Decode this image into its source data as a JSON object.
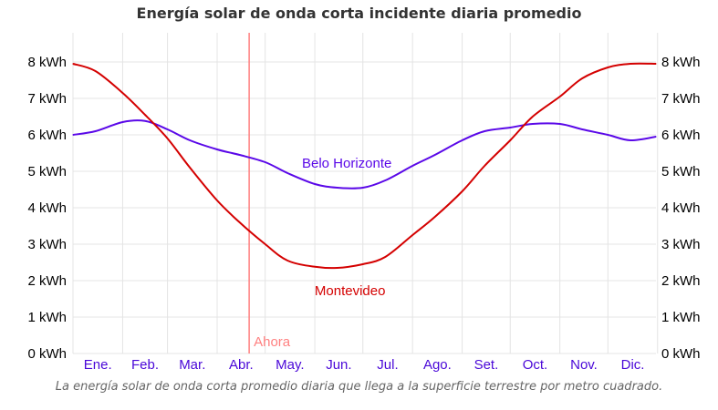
{
  "chart_data": {
    "type": "line",
    "title": "Energía solar de onda corta incidente diaria promedio",
    "caption": "La energía solar de onda corta promedio diaria que llega a la superficie terrestre por metro cuadrado.",
    "y_unit": "kWh",
    "ylim": [
      0,
      8.8
    ],
    "y_ticks": [
      0,
      1,
      2,
      3,
      4,
      5,
      6,
      7,
      8
    ],
    "y_tick_labels": [
      "0 kWh",
      "1 kWh",
      "2 kWh",
      "3 kWh",
      "4 kWh",
      "5 kWh",
      "6 kWh",
      "7 kWh",
      "8 kWh"
    ],
    "y_axis_both_sides": true,
    "x_month_labels": [
      "Ene.",
      "Feb.",
      "Mar.",
      "Abr.",
      "May.",
      "Jun.",
      "Jul.",
      "Ago.",
      "Set.",
      "Oct.",
      "Nov.",
      "Dic."
    ],
    "grid": true,
    "now_marker": {
      "label": "Ahora",
      "day_of_year": 111,
      "color": "#ff8080"
    },
    "colors": {
      "belo_horizonte": "#5a08e8",
      "montevideo": "#d40000",
      "month_label": "#4a08d8",
      "grid": "#e4e4e4"
    },
    "series": [
      {
        "name": "Belo Horizonte",
        "color": "#5a08e8",
        "x_day_of_year": [
          1,
          15,
          32,
          46,
          60,
          74,
          91,
          105,
          121,
          135,
          152,
          166,
          182,
          196,
          213,
          227,
          244,
          258,
          274,
          288,
          305,
          319,
          335,
          349,
          365
        ],
        "values": [
          6.0,
          6.1,
          6.35,
          6.38,
          6.15,
          5.85,
          5.6,
          5.45,
          5.25,
          4.95,
          4.65,
          4.55,
          4.55,
          4.75,
          5.15,
          5.45,
          5.85,
          6.1,
          6.2,
          6.3,
          6.3,
          6.15,
          6.0,
          5.85,
          5.95
        ]
      },
      {
        "name": "Montevideo",
        "color": "#d40000",
        "x_day_of_year": [
          1,
          15,
          32,
          46,
          60,
          74,
          91,
          105,
          121,
          135,
          152,
          166,
          182,
          196,
          213,
          227,
          244,
          258,
          274,
          288,
          305,
          319,
          335,
          349,
          365
        ],
        "values": [
          7.95,
          7.75,
          7.15,
          6.55,
          5.9,
          5.1,
          4.2,
          3.6,
          3.0,
          2.55,
          2.38,
          2.35,
          2.45,
          2.65,
          3.25,
          3.75,
          4.45,
          5.15,
          5.85,
          6.5,
          7.05,
          7.55,
          7.85,
          7.95,
          7.95
        ]
      }
    ]
  }
}
